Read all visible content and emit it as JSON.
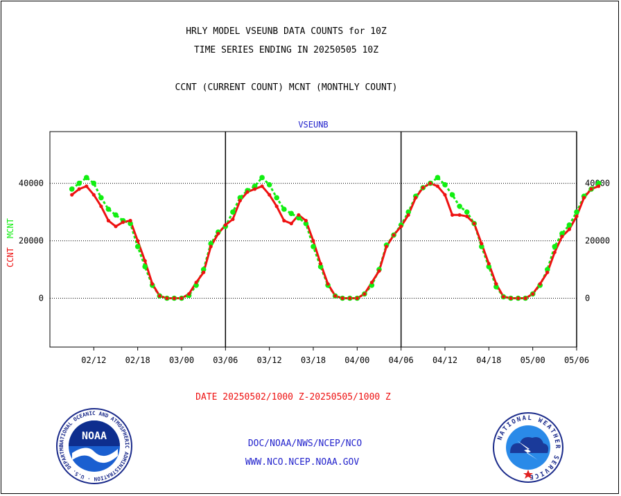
{
  "header": {
    "title_line1": "HRLY MODEL VSEUNB DATA COUNTS for 10Z",
    "title_line2": "TIME SERIES ENDING IN 20250505 10Z",
    "subtitle": "CCNT (CURRENT COUNT) MCNT (MONTHLY COUNT)"
  },
  "footer": {
    "date_range": "DATE 20250502/1000 Z-20250505/1000 Z",
    "org_line": "DOC/NOAA/NWS/NCEP/NCO",
    "url_line": "WWW.NCO.NCEP.NOAA.GOV",
    "noaa_logo_text": "NOAA",
    "noaa_ring_text": "NATIONAL OCEANIC AND ATMOSPHERIC ADMINISTRATION · U.S. DEPARTMENT OF COMMERCE",
    "nws_ring_text": "NATIONAL WEATHER SERVICE"
  },
  "chart_data": {
    "type": "line",
    "title": "VSEUNB",
    "ylabel_ccnt": "CCNT",
    "ylabel_mcnt": "MCNT",
    "ylim": [
      -17000,
      58000
    ],
    "yticks": [
      0,
      20000,
      40000
    ],
    "ytick_labels": [
      "0",
      "20000",
      "40000"
    ],
    "xlim": [
      -3,
      69
    ],
    "xtick_positions": [
      3,
      9,
      15,
      21,
      27,
      33,
      39,
      45,
      51,
      57,
      63,
      69
    ],
    "xtick_labels": [
      "02/12",
      "02/18",
      "03/00",
      "03/06",
      "03/12",
      "03/18",
      "04/00",
      "04/06",
      "04/12",
      "04/18",
      "05/00",
      "05/06"
    ],
    "vertical_lines_at": [
      21,
      45,
      69
    ],
    "grid": "dotted-horizontal",
    "series": [
      {
        "name": "CCNT",
        "color": "#ee1111",
        "x": [
          0,
          1,
          2,
          3,
          4,
          5,
          6,
          7,
          8,
          9,
          10,
          11,
          12,
          13,
          14,
          15,
          16,
          17,
          18,
          19,
          20,
          21,
          22,
          23,
          24,
          25,
          26,
          27,
          28,
          29,
          30,
          31,
          32,
          33,
          34,
          35,
          36,
          37,
          38,
          39,
          40,
          41,
          42,
          43,
          44,
          45,
          46,
          47,
          48,
          49,
          50,
          51,
          52,
          53,
          54,
          55,
          56,
          57,
          58,
          59,
          60,
          61,
          62,
          63,
          64,
          65,
          66,
          67,
          68,
          69,
          70,
          71,
          72
        ],
        "y": [
          36000,
          38000,
          39000,
          36000,
          32000,
          27000,
          25000,
          26500,
          27000,
          20000,
          13000,
          5000,
          800,
          0,
          0,
          0,
          1500,
          5500,
          9000,
          18000,
          22500,
          25500,
          27500,
          34000,
          37000,
          38000,
          39000,
          36000,
          32000,
          27000,
          26000,
          29000,
          27000,
          20000,
          12000,
          5000,
          800,
          0,
          0,
          0,
          1500,
          5500,
          9500,
          18000,
          22000,
          25000,
          29000,
          35000,
          38500,
          40000,
          39000,
          36000,
          29000,
          29000,
          28500,
          26000,
          19000,
          12000,
          5000,
          500,
          0,
          0,
          0,
          1500,
          5000,
          9000,
          16000,
          21500,
          24000,
          28500,
          35000,
          38000,
          39000
        ]
      },
      {
        "name": "MCNT",
        "color": "#11ee11",
        "x": [
          0,
          1,
          2,
          3,
          4,
          5,
          6,
          7,
          8,
          9,
          10,
          11,
          12,
          13,
          14,
          15,
          16,
          17,
          18,
          19,
          20,
          21,
          22,
          23,
          24,
          25,
          26,
          27,
          28,
          29,
          30,
          31,
          32,
          33,
          34,
          35,
          36,
          37,
          38,
          39,
          40,
          41,
          42,
          43,
          44,
          45,
          46,
          47,
          48,
          49,
          50,
          51,
          52,
          53,
          54,
          55,
          56,
          57,
          58,
          59,
          60,
          61,
          62,
          63,
          64,
          65,
          66,
          67,
          68,
          69,
          70,
          71,
          72
        ],
        "y": [
          38000,
          40000,
          42000,
          40000,
          35000,
          31000,
          29000,
          27000,
          26000,
          18000,
          11000,
          4500,
          800,
          0,
          0,
          0,
          1000,
          4500,
          10000,
          19000,
          23000,
          25000,
          30000,
          35000,
          37500,
          39000,
          42000,
          39500,
          35000,
          31000,
          29500,
          28000,
          26000,
          18000,
          11000,
          4500,
          800,
          0,
          0,
          0,
          1500,
          4500,
          10000,
          18500,
          22000,
          25500,
          30000,
          35500,
          38500,
          40000,
          42000,
          39500,
          36000,
          32000,
          30000,
          26000,
          18000,
          11000,
          4000,
          500,
          0,
          0,
          0,
          1500,
          4500,
          10000,
          18000,
          22500,
          25500,
          30000,
          35500,
          38000,
          40000
        ]
      }
    ]
  }
}
